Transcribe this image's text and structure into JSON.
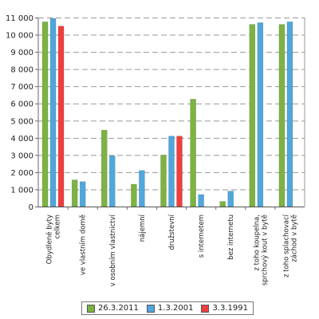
{
  "chart_data": {
    "type": "bar",
    "categories": [
      "Obydlené byty celkem",
      "ve vlastním domě",
      "v osobním vlastnictví",
      "nájemní",
      "družstevní",
      "s internetem",
      "bez internetu",
      "z toho koupelna, sprchový kout v bytě",
      "z toho splachovací záchod v bytě"
    ],
    "series": [
      {
        "name": "26.3.2011",
        "color": "#7cb342",
        "values": [
          10750,
          1550,
          4450,
          1300,
          3000,
          6250,
          300,
          10600,
          10600
        ]
      },
      {
        "name": "1.3.2001",
        "color": "#4fa7dc",
        "values": [
          10950,
          1450,
          2950,
          2100,
          4100,
          700,
          900,
          10700,
          10750
        ]
      },
      {
        "name": "3.3.1991",
        "color": "#ee3f3f",
        "values": [
          10500,
          null,
          null,
          null,
          4100,
          null,
          null,
          null,
          null
        ]
      }
    ],
    "yticks": [
      "0",
      "1 000",
      "2 000",
      "3 000",
      "4 000",
      "5 000",
      "6 000",
      "7 000",
      "8 000",
      "9 000",
      "10 000",
      "11 000"
    ],
    "ylim": [
      0,
      11000
    ],
    "grid": true,
    "legend_position": "bottom"
  }
}
